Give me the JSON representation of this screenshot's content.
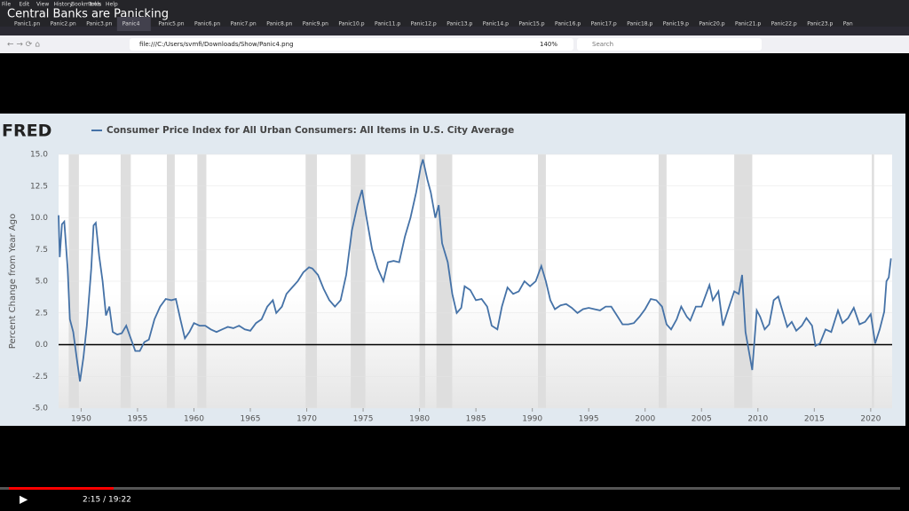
{
  "video": {
    "title": "Central Banks are Panicking",
    "time": "2:15 / 19:22"
  },
  "browser": {
    "menu": [
      "File",
      "Edit",
      "View",
      "History",
      "Bookmarks",
      "Tools",
      "Help"
    ],
    "tabs": [
      "Panic1.pn",
      "Panic2.pn",
      "Panic3.pn",
      "Panic4",
      "Panic5.pn",
      "Panic6.pn",
      "Panic7.pn",
      "Panic8.pn",
      "Panic9.pn",
      "Panic10.p",
      "Panic11.p",
      "Panic12.p",
      "Panic13.p",
      "Panic14.p",
      "Panic15.p",
      "Panic16.p",
      "Panic17.p",
      "Panic18.p",
      "Panic19.p",
      "Panic20.p",
      "Panic21.p",
      "Panic22.p",
      "Panic23.p",
      "Pan"
    ],
    "url": "file:///C:/Users/svmfi/Downloads/Show/Panic4.png",
    "zoom": "140%",
    "search": "Search"
  },
  "chart_data": {
    "type": "line",
    "logo": "FRED",
    "ylabel": "Percent Change from Year Ago",
    "x": [
      1948.0,
      1948.1,
      1948.3,
      1948.5,
      1948.8,
      1949.0,
      1949.3,
      1949.6,
      1949.9,
      1950.2,
      1950.5,
      1950.9,
      1951.1,
      1951.3,
      1951.6,
      1951.9,
      1952.2,
      1952.5,
      1952.8,
      1953.2,
      1953.6,
      1954.0,
      1954.4,
      1954.8,
      1955.2,
      1955.6,
      1956.0,
      1956.5,
      1957.0,
      1957.5,
      1958.0,
      1958.4,
      1958.8,
      1959.2,
      1959.6,
      1960.0,
      1960.5,
      1961.0,
      1961.5,
      1962.0,
      1962.5,
      1963.0,
      1963.5,
      1964.0,
      1964.5,
      1965.0,
      1965.5,
      1966.0,
      1966.5,
      1967.0,
      1967.3,
      1967.8,
      1968.2,
      1968.7,
      1969.2,
      1969.7,
      1970.2,
      1970.5,
      1971.0,
      1971.5,
      1972.0,
      1972.5,
      1973.0,
      1973.5,
      1974.0,
      1974.5,
      1974.9,
      1975.3,
      1975.8,
      1976.3,
      1976.8,
      1977.2,
      1977.7,
      1978.2,
      1978.7,
      1979.2,
      1979.7,
      1980.1,
      1980.3,
      1980.7,
      1981.0,
      1981.4,
      1981.7,
      1982.0,
      1982.5,
      1982.9,
      1983.3,
      1983.7,
      1984.0,
      1984.5,
      1985.0,
      1985.5,
      1986.0,
      1986.4,
      1986.9,
      1987.3,
      1987.8,
      1988.3,
      1988.8,
      1989.3,
      1989.8,
      1990.3,
      1990.8,
      1991.2,
      1991.6,
      1992.0,
      1992.5,
      1993.0,
      1993.5,
      1994.0,
      1994.5,
      1995.0,
      1995.5,
      1996.0,
      1996.5,
      1997.0,
      1997.5,
      1998.0,
      1998.5,
      1999.0,
      1999.5,
      2000.0,
      2000.5,
      2001.0,
      2001.5,
      2001.9,
      2002.3,
      2002.8,
      2003.2,
      2003.7,
      2004.0,
      2004.5,
      2005.0,
      2005.7,
      2006.0,
      2006.5,
      2006.9,
      2007.3,
      2007.9,
      2008.3,
      2008.6,
      2008.9,
      2009.2,
      2009.5,
      2009.9,
      2010.2,
      2010.6,
      2011.0,
      2011.4,
      2011.8,
      2012.2,
      2012.6,
      2013.0,
      2013.4,
      2013.9,
      2014.3,
      2014.8,
      2015.1,
      2015.5,
      2016.0,
      2016.5,
      2017.1,
      2017.5,
      2018.0,
      2018.5,
      2019.0,
      2019.5,
      2020.0,
      2020.4,
      2020.8,
      2021.2,
      2021.4,
      2021.6,
      2021.8
    ],
    "series": [
      {
        "name": "Consumer Price Index for All Urban Consumers: All Items in U.S. City Average",
        "color": "#4572a7",
        "values": [
          10.2,
          6.9,
          9.5,
          9.7,
          6.0,
          2.0,
          1.0,
          -1.0,
          -2.9,
          -1.0,
          1.5,
          6.0,
          9.4,
          9.6,
          7.0,
          5.0,
          2.3,
          3.0,
          1.0,
          0.8,
          0.9,
          1.5,
          0.5,
          -0.5,
          -0.5,
          0.2,
          0.4,
          2.0,
          3.0,
          3.6,
          3.5,
          3.6,
          2.0,
          0.5,
          1.0,
          1.7,
          1.5,
          1.5,
          1.2,
          1.0,
          1.2,
          1.4,
          1.3,
          1.5,
          1.2,
          1.1,
          1.7,
          2.0,
          3.0,
          3.5,
          2.5,
          3.0,
          4.0,
          4.5,
          5.0,
          5.7,
          6.1,
          6.0,
          5.5,
          4.4,
          3.5,
          3.0,
          3.5,
          5.5,
          9.0,
          11.0,
          12.2,
          10.0,
          7.5,
          6.0,
          5.0,
          6.5,
          6.6,
          6.5,
          8.5,
          10.0,
          12.0,
          14.0,
          14.6,
          13.0,
          12.0,
          10.0,
          11.0,
          8.0,
          6.5,
          4.0,
          2.5,
          2.9,
          4.6,
          4.3,
          3.5,
          3.6,
          3.0,
          1.5,
          1.2,
          3.0,
          4.5,
          4.0,
          4.2,
          5.0,
          4.6,
          5.0,
          6.2,
          5.0,
          3.5,
          2.8,
          3.1,
          3.2,
          2.9,
          2.5,
          2.8,
          2.9,
          2.8,
          2.7,
          3.0,
          3.0,
          2.3,
          1.6,
          1.6,
          1.7,
          2.2,
          2.8,
          3.6,
          3.5,
          3.0,
          1.6,
          1.2,
          2.0,
          3.0,
          2.2,
          1.9,
          3.0,
          3.0,
          4.7,
          3.5,
          4.2,
          1.5,
          2.6,
          4.2,
          4.0,
          5.5,
          1.0,
          -0.5,
          -2.0,
          2.7,
          2.2,
          1.2,
          1.6,
          3.5,
          3.8,
          2.6,
          1.4,
          1.8,
          1.1,
          1.5,
          2.1,
          1.5,
          -0.1,
          0.1,
          1.2,
          1.0,
          2.7,
          1.7,
          2.1,
          2.9,
          1.6,
          1.8,
          2.4,
          0.1,
          1.2,
          2.6,
          5.0,
          5.3,
          6.8
        ]
      }
    ],
    "recessions": [
      [
        1948.9,
        1949.8
      ],
      [
        1953.5,
        1954.4
      ],
      [
        1957.6,
        1958.3
      ],
      [
        1960.3,
        1961.1
      ],
      [
        1969.9,
        1970.9
      ],
      [
        1973.9,
        1975.2
      ],
      [
        1980.0,
        1980.5
      ],
      [
        1981.5,
        1982.9
      ],
      [
        1990.5,
        1991.2
      ],
      [
        2001.2,
        2001.9
      ],
      [
        2007.9,
        2009.5
      ],
      [
        2020.1,
        2020.3
      ]
    ],
    "xlim": [
      1948,
      2021.9
    ],
    "ylim": [
      -5,
      15
    ],
    "xticks": [
      1950,
      1955,
      1960,
      1965,
      1970,
      1975,
      1980,
      1985,
      1990,
      1995,
      2000,
      2005,
      2010,
      2015,
      2020
    ],
    "yticks": [
      {
        "value": -5,
        "label": "-5.0"
      },
      -2.5,
      {
        "value": 0,
        "label": "0.0"
      },
      2.5,
      {
        "value": 5,
        "label": "5.0"
      },
      7.5,
      {
        "value": 10,
        "label": "10.0"
      },
      12.5,
      {
        "value": 15,
        "label": "15.0"
      }
    ]
  }
}
